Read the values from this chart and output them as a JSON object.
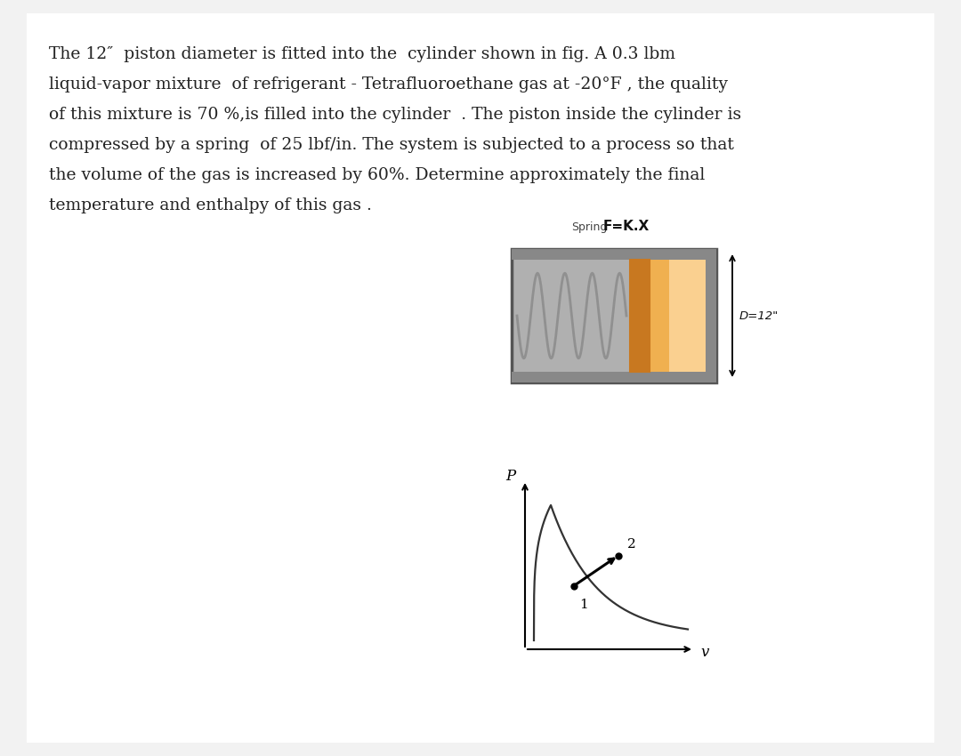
{
  "page_bg": "#f2f2f2",
  "inner_bg": "#ffffff",
  "text_color": "#222222",
  "paragraph_lines": [
    "The 12″  piston diameter is fitted into the  cylinder shown in fig. A 0.3 lbm",
    "liquid-vapor mixture  of refrigerant - Tetrafluoroethane gas at -20°F , the quality",
    "of this mixture is 70 %,is filled into the cylinder  . The piston inside the cylinder is",
    "compressed by a spring  of 25 lbf/in. The system is subjected to a process so that",
    "the volume of the gas is increased by 60%. Determine approximately the final",
    "temperature and enthalpy of this gas ."
  ],
  "spring_label": "Spring",
  "spring_formula": "F=K.X",
  "diameter_label": "D=12\"",
  "pv_xlabel": "v",
  "pv_ylabel": "P",
  "point1_label": "1",
  "point2_label": "2",
  "cylinder_gray": "#b0b0b0",
  "cylinder_dark": "#555555",
  "spring_color": "#909090",
  "piston_color": "#c87820",
  "piston_light": "#e8a040",
  "gas_color": "#f0b050",
  "gas_light": "#fad090"
}
